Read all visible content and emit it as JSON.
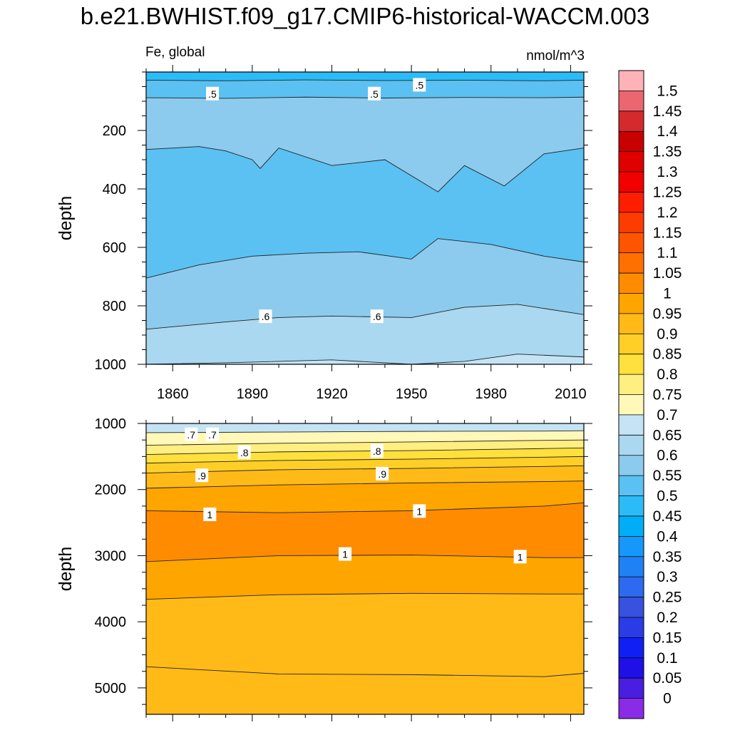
{
  "title": "b.e21.BWHIST.f09_g17.CMIP6-historical-WACCM.003",
  "subtitle_left": "Fe, global",
  "subtitle_right": "nmol/m^3",
  "chart_data": [
    {
      "type": "heatmap",
      "panel": "upper",
      "xlabel": "",
      "ylabel": "depth",
      "xlim": [
        1850,
        2015
      ],
      "ylim": [
        1000,
        0
      ],
      "x_ticks": [
        1860,
        1890,
        1920,
        1950,
        1980,
        2010
      ],
      "y_ticks": [
        200,
        400,
        600,
        800,
        1000
      ],
      "contour_boundaries": [
        {
          "level": 0.45,
          "x": [
            1850,
            1880,
            1910,
            1940,
            1970,
            2000,
            2015
          ],
          "y": [
            28,
            30,
            27,
            29,
            28,
            30,
            28
          ]
        },
        {
          "level": 0.5,
          "x": [
            1850,
            1880,
            1910,
            1940,
            1970,
            2000,
            2015
          ],
          "y": [
            88,
            90,
            86,
            89,
            87,
            88,
            86
          ]
        },
        {
          "level": 0.55,
          "x": [
            1850,
            1870,
            1880,
            1890,
            1893,
            1900,
            1920,
            1940,
            1960,
            1970,
            1985,
            2000,
            2015
          ],
          "y": [
            265,
            255,
            270,
            300,
            330,
            260,
            320,
            300,
            410,
            320,
            390,
            280,
            260
          ]
        },
        {
          "level": 0.5,
          "x": [
            1850,
            1870,
            1890,
            1910,
            1930,
            1950,
            1960,
            1980,
            2000,
            2015
          ],
          "y": [
            705,
            660,
            630,
            620,
            615,
            640,
            570,
            590,
            630,
            650
          ]
        },
        {
          "level": 0.55,
          "x": [
            1850,
            1880,
            1900,
            1920,
            1950,
            1970,
            1990,
            2015
          ],
          "y": [
            880,
            855,
            840,
            835,
            840,
            805,
            795,
            830
          ]
        },
        {
          "level": 0.6,
          "x": [
            1850,
            1880,
            1920,
            1950,
            1970,
            1990,
            2015
          ],
          "y": [
            1000,
            995,
            985,
            1000,
            990,
            965,
            975
          ]
        }
      ],
      "contour_labels": [
        {
          "text": ".5",
          "x": 1875,
          "y": 75
        },
        {
          "text": ".5",
          "x": 1936,
          "y": 75
        },
        {
          "text": ".5",
          "x": 1953,
          "y": 45
        },
        {
          "text": ".6",
          "x": 1895,
          "y": 837
        },
        {
          "text": ".6",
          "x": 1937,
          "y": 837
        }
      ]
    },
    {
      "type": "heatmap",
      "panel": "lower",
      "xlabel": "",
      "ylabel": "depth",
      "xlim": [
        1850,
        2015
      ],
      "ylim": [
        5400,
        1000
      ],
      "x_ticks": [
        1860,
        1890,
        1920,
        1950,
        1980,
        2010
      ],
      "y_ticks": [
        1000,
        2000,
        3000,
        4000,
        5000
      ],
      "contour_boundaries": [
        {
          "level": 0.7,
          "x": [
            1850,
            1900,
            1950,
            2000,
            2015
          ],
          "y": [
            1140,
            1130,
            1120,
            1115,
            1110
          ]
        },
        {
          "level": 0.75,
          "x": [
            1850,
            1900,
            1950,
            2000,
            2015
          ],
          "y": [
            1330,
            1300,
            1280,
            1255,
            1250
          ]
        },
        {
          "level": 0.8,
          "x": [
            1850,
            1900,
            1950,
            2000,
            2015
          ],
          "y": [
            1470,
            1430,
            1410,
            1380,
            1370
          ]
        },
        {
          "level": 0.85,
          "x": [
            1850,
            1900,
            1950,
            2000,
            2015
          ],
          "y": [
            1600,
            1560,
            1540,
            1510,
            1500
          ]
        },
        {
          "level": 0.9,
          "x": [
            1850,
            1900,
            1950,
            2000,
            2015
          ],
          "y": [
            1750,
            1700,
            1680,
            1650,
            1640
          ]
        },
        {
          "level": 0.95,
          "x": [
            1850,
            1900,
            1950,
            2000,
            2015
          ],
          "y": [
            1980,
            1930,
            1900,
            1880,
            1870
          ]
        },
        {
          "level": 1.0,
          "x": [
            1850,
            1900,
            1950,
            2000,
            2015
          ],
          "y": [
            2320,
            2350,
            2320,
            2250,
            2200
          ]
        },
        {
          "level": 1.0,
          "x": [
            1850,
            1900,
            1950,
            2000,
            2015
          ],
          "y": [
            3090,
            3000,
            2990,
            3030,
            3030
          ]
        },
        {
          "level": 0.95,
          "x": [
            1850,
            1900,
            1950,
            2000,
            2015
          ],
          "y": [
            3660,
            3590,
            3570,
            3580,
            3580
          ]
        },
        {
          "level": 0.9,
          "x": [
            1850,
            1900,
            1950,
            2000,
            2015
          ],
          "y": [
            4680,
            4790,
            4800,
            4830,
            4780
          ]
        }
      ],
      "contour_labels": [
        {
          "text": ".7",
          "x": 1867,
          "y": 1170
        },
        {
          "text": ".7",
          "x": 1875,
          "y": 1170
        },
        {
          "text": ".8",
          "x": 1887,
          "y": 1440
        },
        {
          "text": ".8",
          "x": 1937,
          "y": 1420
        },
        {
          "text": ".9",
          "x": 1871,
          "y": 1790
        },
        {
          "text": ".9",
          "x": 1939,
          "y": 1765
        },
        {
          "text": "1",
          "x": 1874,
          "y": 2380
        },
        {
          "text": "1",
          "x": 1953,
          "y": 2330
        },
        {
          "text": "1",
          "x": 1925,
          "y": 2980
        },
        {
          "text": "1",
          "x": 1991,
          "y": 3020
        }
      ]
    }
  ],
  "colorbar": {
    "labels": [
      "1.5",
      "1.45",
      "1.4",
      "1.35",
      "1.3",
      "1.25",
      "1.2",
      "1.15",
      "1.1",
      "1.05",
      "1",
      "0.95",
      "0.9",
      "0.85",
      "0.8",
      "0.75",
      "0.7",
      "0.65",
      "0.6",
      "0.55",
      "0.5",
      "0.45",
      "0.4",
      "0.35",
      "0.3",
      "0.25",
      "0.2",
      "0.15",
      "0.1",
      "0.05",
      "0"
    ],
    "colors": [
      "#FFB3B8",
      "#EB6670",
      "#D42A2E",
      "#C80000",
      "#E00000",
      "#F20000",
      "#FF1E00",
      "#FF3C00",
      "#FF5500",
      "#FF7000",
      "#FF8C00",
      "#FFA500",
      "#FFBA18",
      "#FFCF28",
      "#FFE03C",
      "#FFEE80",
      "#FFF8B8",
      "#C4E4F5",
      "#A9D8F0",
      "#8CCBEE",
      "#5AC1F2",
      "#2BBCF8",
      "#00AEF8",
      "#1598FA",
      "#1E82F4",
      "#2E6AF0",
      "#3752DE",
      "#2A3CE6",
      "#1020F5",
      "#1E10E6",
      "#4A1EE0",
      "#8A2BE8"
    ]
  }
}
